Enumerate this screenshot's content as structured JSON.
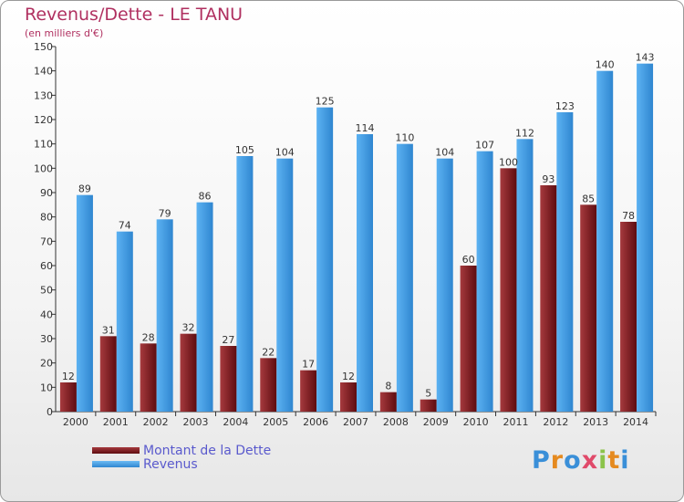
{
  "title": "Revenus/Dette - LE TANU",
  "subtitle": "(en milliers d'€)",
  "logo": "Proxiti",
  "colors": {
    "dette": "#7a1c20",
    "revenus": "#3d9ae3",
    "title": "#b03060",
    "legend_text": "#5a5acd"
  },
  "chart_data": {
    "type": "bar",
    "categories": [
      "2000",
      "2001",
      "2002",
      "2003",
      "2004",
      "2005",
      "2006",
      "2007",
      "2008",
      "2009",
      "2010",
      "2011",
      "2012",
      "2013",
      "2014"
    ],
    "series": [
      {
        "name": "Montant de la Dette",
        "values": [
          12,
          31,
          28,
          32,
          27,
          22,
          17,
          12,
          8,
          5,
          60,
          100,
          93,
          85,
          78
        ]
      },
      {
        "name": "Revenus",
        "values": [
          89,
          74,
          79,
          86,
          105,
          104,
          125,
          114,
          110,
          104,
          107,
          112,
          123,
          140,
          143
        ]
      }
    ],
    "ylim": [
      0,
      150
    ],
    "yticks": [
      0,
      10,
      20,
      30,
      40,
      50,
      60,
      70,
      80,
      90,
      100,
      110,
      120,
      130,
      140,
      150
    ],
    "grid": false,
    "legend_position": "bottom-left"
  }
}
